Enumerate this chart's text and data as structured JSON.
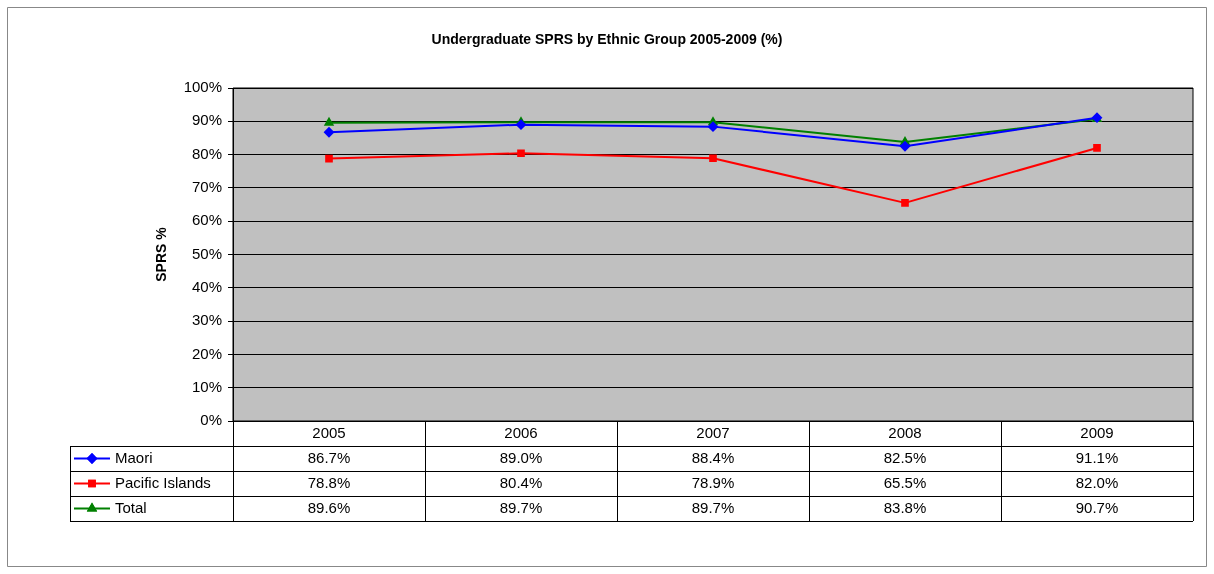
{
  "chart_data": {
    "type": "line",
    "title": "Undergraduate SPRS by Ethnic Group 2005-2009 (%)",
    "ylabel": "SPRS %",
    "categories": [
      "2005",
      "2006",
      "2007",
      "2008",
      "2009"
    ],
    "series": [
      {
        "name": "Maori",
        "color": "#0000ff",
        "marker": "diamond",
        "values": [
          86.7,
          89.0,
          88.4,
          82.5,
          91.1
        ],
        "value_labels": [
          "86.7%",
          "89.0%",
          "88.4%",
          "82.5%",
          "91.1%"
        ]
      },
      {
        "name": "Pacific Islands",
        "color": "#ff0000",
        "marker": "square",
        "values": [
          78.8,
          80.4,
          78.9,
          65.5,
          82.0
        ],
        "value_labels": [
          "78.8%",
          "80.4%",
          "78.9%",
          "65.5%",
          "82.0%"
        ]
      },
      {
        "name": "Total",
        "color": "#008000",
        "marker": "triangle",
        "values": [
          89.6,
          89.7,
          89.7,
          83.8,
          90.7
        ],
        "value_labels": [
          "89.6%",
          "89.7%",
          "89.7%",
          "83.8%",
          "90.7%"
        ]
      }
    ],
    "ylim": [
      0,
      100
    ],
    "yticks": [
      {
        "value": 0,
        "label": "0%"
      },
      {
        "value": 10,
        "label": "10%"
      },
      {
        "value": 20,
        "label": "20%"
      },
      {
        "value": 30,
        "label": "30%"
      },
      {
        "value": 40,
        "label": "40%"
      },
      {
        "value": 50,
        "label": "50%"
      },
      {
        "value": 60,
        "label": "60%"
      },
      {
        "value": 70,
        "label": "70%"
      },
      {
        "value": 80,
        "label": "80%"
      },
      {
        "value": 90,
        "label": "90%"
      },
      {
        "value": 100,
        "label": "100%"
      }
    ],
    "grid": "y",
    "legend": "bottom",
    "line_style": "solid"
  }
}
